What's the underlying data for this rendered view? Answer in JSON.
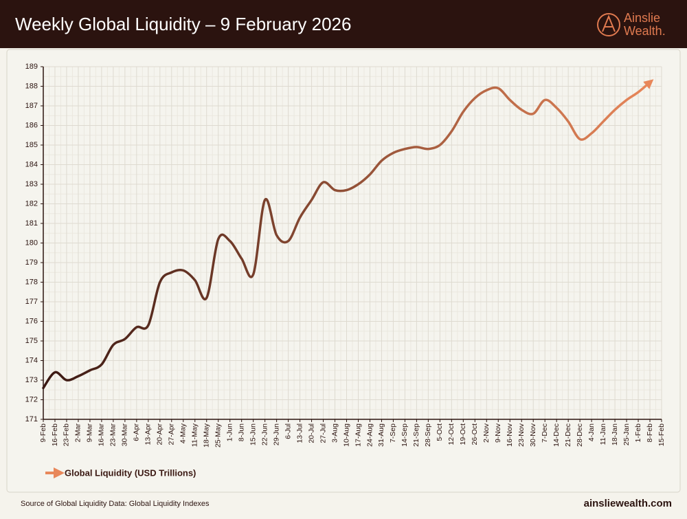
{
  "chart_data": {
    "type": "line",
    "title": "Weekly Global Liquidity – 9 February 2026",
    "categories": [
      "9-Feb",
      "16-Feb",
      "23-Feb",
      "2-Mar",
      "9-Mar",
      "16-Mar",
      "23-Mar",
      "30-Mar",
      "6-Apr",
      "13-Apr",
      "20-Apr",
      "27-Apr",
      "4-May",
      "11-May",
      "18-May",
      "25-May",
      "1-Jun",
      "8-Jun",
      "15-Jun",
      "22-Jun",
      "29-Jun",
      "6-Jul",
      "13-Jul",
      "20-Jul",
      "27-Jul",
      "3-Aug",
      "10-Aug",
      "17-Aug",
      "24-Aug",
      "31-Aug",
      "7-Sep",
      "14-Sep",
      "21-Sep",
      "28-Sep",
      "5-Oct",
      "12-Oct",
      "19-Oct",
      "26-Oct",
      "2-Nov",
      "9-Nov",
      "16-Nov",
      "23-Nov",
      "30-Nov",
      "7-Dec",
      "14-Dec",
      "21-Dec",
      "28-Dec",
      "4-Jan",
      "11-Jan",
      "18-Jan",
      "25-Jan",
      "1-Feb",
      "8-Feb",
      "15-Feb"
    ],
    "series": [
      {
        "name": "Global Liquidity (USD Trillions)",
        "color": "#e8875a",
        "color_start": "#3a1812",
        "values": [
          172.6,
          173.4,
          173.0,
          173.2,
          173.5,
          173.8,
          174.8,
          175.1,
          175.7,
          175.8,
          178.0,
          178.5,
          178.6,
          178.1,
          177.2,
          180.2,
          180.1,
          179.2,
          178.4,
          182.2,
          180.4,
          180.1,
          181.3,
          182.2,
          183.1,
          182.7,
          182.7,
          183.0,
          183.5,
          184.2,
          184.6,
          184.8,
          184.9,
          184.8,
          185.0,
          185.7,
          186.7,
          187.4,
          187.8,
          187.9,
          187.3,
          186.8,
          186.6,
          187.3,
          186.9,
          186.2,
          185.3,
          185.6,
          186.2,
          186.8,
          187.3,
          187.7,
          188.2,
          null
        ]
      }
    ],
    "ylim": [
      171,
      189
    ],
    "yticks": [
      171,
      172,
      173,
      174,
      175,
      176,
      177,
      178,
      179,
      180,
      181,
      182,
      183,
      184,
      185,
      186,
      187,
      188,
      189
    ],
    "grid": true
  },
  "brand": {
    "line1": "Ainslie",
    "line2": "Wealth."
  },
  "footer": {
    "source": "Source of Global Liquidity Data: Global Liquidity Indexes",
    "website": "ainsliewealth.com"
  }
}
